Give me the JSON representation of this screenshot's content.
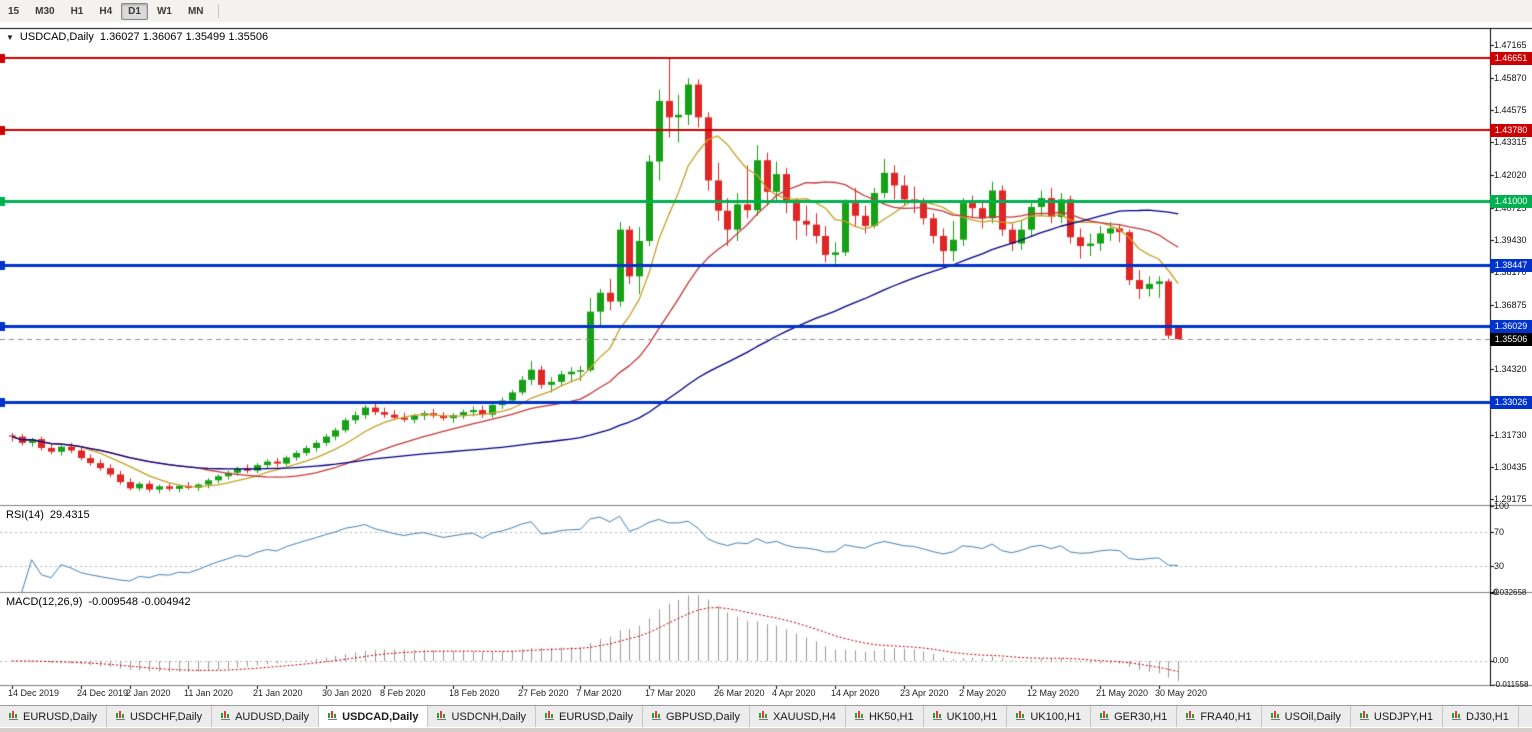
{
  "toolbar": {
    "timeframes": [
      {
        "label": "15",
        "active": false
      },
      {
        "label": "M30",
        "active": false
      },
      {
        "label": "H1",
        "active": false
      },
      {
        "label": "H4",
        "active": false
      },
      {
        "label": "D1",
        "active": true
      },
      {
        "label": "W1",
        "active": false
      },
      {
        "label": "MN",
        "active": false
      }
    ]
  },
  "chart_data": {
    "type": "candlestick",
    "title": "USDCAD,Daily",
    "ohlc_text": "1.36027 1.36067 1.35499 1.35506",
    "current_bar": {
      "open": 1.36027,
      "high": 1.36067,
      "low": 1.35499,
      "close": 1.35506
    },
    "colors": {
      "up": "#16a016",
      "down": "#e02525",
      "background": "#ffffff",
      "current_price_line": "#909090"
    },
    "price_axis": {
      "min": 1.2894,
      "max": 1.478,
      "ticks": [
        "1.47165",
        "1.45870",
        "1.44575",
        "1.43315",
        "1.42020",
        "1.40725",
        "1.39430",
        "1.38170",
        "1.36875",
        "1.34320",
        "1.31730",
        "1.30435",
        "1.29175"
      ]
    },
    "hlines": [
      {
        "price": 1.46651,
        "label": "1.46651",
        "color": "#cc0000",
        "width": 2
      },
      {
        "price": 1.4378,
        "label": "1.43780",
        "color": "#cc0000",
        "width": 2
      },
      {
        "price": 1.41,
        "label": "1.41000",
        "color": "#00b050",
        "width": 3
      },
      {
        "price": 1.38447,
        "label": "1.38447",
        "color": "#0033cc",
        "width": 3
      },
      {
        "price": 1.36029,
        "label": "1.36029",
        "color": "#0033cc",
        "width": 3
      },
      {
        "price": 1.33026,
        "label": "1.33026",
        "color": "#0033cc",
        "width": 3
      }
    ],
    "current_price": {
      "price": 1.35506,
      "label": "1.35506",
      "color": "#000000"
    },
    "moving_averages": [
      {
        "period": 8,
        "color": "#C8A028"
      },
      {
        "period": 20,
        "color": "#C23B3B"
      },
      {
        "period": 55,
        "color": "#000080"
      }
    ],
    "candles": [
      [
        1.317,
        1.318,
        1.3145,
        1.3165
      ],
      [
        1.3165,
        1.3175,
        1.313,
        1.314
      ],
      [
        1.314,
        1.316,
        1.3125,
        1.3155
      ],
      [
        1.3155,
        1.3165,
        1.311,
        1.312
      ],
      [
        1.312,
        1.3135,
        1.3095,
        1.3105
      ],
      [
        1.3105,
        1.313,
        1.309,
        1.3125
      ],
      [
        1.3125,
        1.314,
        1.31,
        1.311
      ],
      [
        1.311,
        1.312,
        1.307,
        1.308
      ],
      [
        1.308,
        1.3095,
        1.305,
        1.306
      ],
      [
        1.306,
        1.3075,
        1.303,
        1.304
      ],
      [
        1.304,
        1.3055,
        1.3005,
        1.3015
      ],
      [
        1.3015,
        1.303,
        1.2975,
        1.2985
      ],
      [
        1.2985,
        1.3,
        1.2952,
        1.296
      ],
      [
        1.296,
        1.2985,
        1.295,
        1.2978
      ],
      [
        1.2978,
        1.299,
        1.2945,
        1.2955
      ],
      [
        1.2955,
        1.2975,
        1.294,
        1.2968
      ],
      [
        1.2968,
        1.298,
        1.2948,
        1.2958
      ],
      [
        1.2958,
        1.2975,
        1.2945,
        1.297
      ],
      [
        1.297,
        1.2985,
        1.2955,
        1.2962
      ],
      [
        1.2962,
        1.298,
        1.295,
        1.2975
      ],
      [
        1.2975,
        1.3,
        1.296,
        1.2992
      ],
      [
        1.2992,
        1.3015,
        1.298,
        1.3008
      ],
      [
        1.3008,
        1.303,
        1.2995,
        1.3022
      ],
      [
        1.3022,
        1.3045,
        1.301,
        1.3038
      ],
      [
        1.3038,
        1.3055,
        1.302,
        1.303
      ],
      [
        1.303,
        1.306,
        1.302,
        1.3052
      ],
      [
        1.3052,
        1.3075,
        1.304,
        1.3066
      ],
      [
        1.3066,
        1.308,
        1.3045,
        1.3058
      ],
      [
        1.3058,
        1.309,
        1.305,
        1.3082
      ],
      [
        1.3082,
        1.311,
        1.307,
        1.31
      ],
      [
        1.31,
        1.313,
        1.3088,
        1.312
      ],
      [
        1.312,
        1.315,
        1.3105,
        1.314
      ],
      [
        1.314,
        1.3175,
        1.3128,
        1.3165
      ],
      [
        1.3165,
        1.32,
        1.315,
        1.319
      ],
      [
        1.319,
        1.324,
        1.318,
        1.323
      ],
      [
        1.323,
        1.3265,
        1.3215,
        1.325
      ],
      [
        1.325,
        1.329,
        1.3235,
        1.328
      ],
      [
        1.328,
        1.3295,
        1.325,
        1.3262
      ],
      [
        1.3262,
        1.328,
        1.324,
        1.3252
      ],
      [
        1.3252,
        1.327,
        1.323,
        1.324
      ],
      [
        1.324,
        1.326,
        1.3222,
        1.3232
      ],
      [
        1.3232,
        1.3255,
        1.3218,
        1.3248
      ],
      [
        1.3248,
        1.3268,
        1.323,
        1.3258
      ],
      [
        1.3258,
        1.3275,
        1.3238,
        1.3248
      ],
      [
        1.3248,
        1.3262,
        1.3228,
        1.3238
      ],
      [
        1.3238,
        1.3258,
        1.322,
        1.325
      ],
      [
        1.325,
        1.3272,
        1.3235,
        1.3262
      ],
      [
        1.3262,
        1.3285,
        1.3245,
        1.327
      ],
      [
        1.327,
        1.3288,
        1.324,
        1.3252
      ],
      [
        1.3252,
        1.33,
        1.324,
        1.329
      ],
      [
        1.329,
        1.332,
        1.3275,
        1.3308
      ],
      [
        1.3308,
        1.335,
        1.3295,
        1.334
      ],
      [
        1.334,
        1.3405,
        1.333,
        1.339
      ],
      [
        1.339,
        1.3465,
        1.337,
        1.343
      ],
      [
        1.343,
        1.3445,
        1.3355,
        1.337
      ],
      [
        1.337,
        1.34,
        1.334,
        1.3382
      ],
      [
        1.3382,
        1.3425,
        1.3365,
        1.3412
      ],
      [
        1.3412,
        1.344,
        1.338,
        1.3422
      ],
      [
        1.3422,
        1.3445,
        1.3385,
        1.3428
      ],
      [
        1.3428,
        1.3715,
        1.342,
        1.366
      ],
      [
        1.366,
        1.375,
        1.36,
        1.3735
      ],
      [
        1.3735,
        1.379,
        1.3665,
        1.37
      ],
      [
        1.37,
        1.4015,
        1.368,
        1.3985
      ],
      [
        1.3985,
        1.4,
        1.377,
        1.38
      ],
      [
        1.38,
        1.3995,
        1.373,
        1.394
      ],
      [
        1.394,
        1.428,
        1.392,
        1.4255
      ],
      [
        1.4255,
        1.454,
        1.418,
        1.4495
      ],
      [
        1.4495,
        1.4668,
        1.435,
        1.443
      ],
      [
        1.443,
        1.452,
        1.433,
        1.444
      ],
      [
        1.444,
        1.4585,
        1.44,
        1.456
      ],
      [
        1.456,
        1.458,
        1.439,
        1.443
      ],
      [
        1.443,
        1.445,
        1.414,
        1.418
      ],
      [
        1.418,
        1.425,
        1.402,
        1.406
      ],
      [
        1.406,
        1.411,
        1.392,
        1.3985
      ],
      [
        1.3985,
        1.413,
        1.394,
        1.4085
      ],
      [
        1.4085,
        1.424,
        1.403,
        1.4062
      ],
      [
        1.4062,
        1.432,
        1.404,
        1.426
      ],
      [
        1.426,
        1.429,
        1.408,
        1.4135
      ],
      [
        1.4135,
        1.4255,
        1.41,
        1.4205
      ],
      [
        1.4205,
        1.423,
        1.405,
        1.409
      ],
      [
        1.409,
        1.411,
        1.3945,
        1.402
      ],
      [
        1.402,
        1.408,
        1.396,
        1.4005
      ],
      [
        1.4005,
        1.405,
        1.393,
        1.396
      ],
      [
        1.396,
        1.4,
        1.3855,
        1.3885
      ],
      [
        1.3885,
        1.3935,
        1.385,
        1.3895
      ],
      [
        1.3895,
        1.4105,
        1.388,
        1.409
      ],
      [
        1.409,
        1.415,
        1.4,
        1.404
      ],
      [
        1.404,
        1.408,
        1.397,
        1.4
      ],
      [
        1.4,
        1.415,
        1.399,
        1.413
      ],
      [
        1.413,
        1.4265,
        1.411,
        1.421
      ],
      [
        1.421,
        1.424,
        1.4105,
        1.416
      ],
      [
        1.416,
        1.42,
        1.408,
        1.4105
      ],
      [
        1.4105,
        1.4155,
        1.405,
        1.409
      ],
      [
        1.409,
        1.411,
        1.4005,
        1.403
      ],
      [
        1.403,
        1.405,
        1.393,
        1.396
      ],
      [
        1.396,
        1.399,
        1.385,
        1.39
      ],
      [
        1.39,
        1.402,
        1.386,
        1.3945
      ],
      [
        1.3945,
        1.411,
        1.392,
        1.409
      ],
      [
        1.409,
        1.412,
        1.403,
        1.407
      ],
      [
        1.407,
        1.4095,
        1.399,
        1.403
      ],
      [
        1.403,
        1.4175,
        1.401,
        1.414
      ],
      [
        1.414,
        1.416,
        1.396,
        1.3985
      ],
      [
        1.3985,
        1.401,
        1.39,
        1.393
      ],
      [
        1.393,
        1.402,
        1.3905,
        1.3985
      ],
      [
        1.3985,
        1.409,
        1.396,
        1.4075
      ],
      [
        1.4075,
        1.414,
        1.404,
        1.411
      ],
      [
        1.411,
        1.415,
        1.401,
        1.4035
      ],
      [
        1.4035,
        1.413,
        1.401,
        1.4105
      ],
      [
        1.4105,
        1.412,
        1.393,
        1.3955
      ],
      [
        1.3955,
        1.399,
        1.387,
        1.392
      ],
      [
        1.392,
        1.397,
        1.388,
        1.393
      ],
      [
        1.393,
        1.4,
        1.39,
        1.397
      ],
      [
        1.397,
        1.4015,
        1.394,
        1.399
      ],
      [
        1.399,
        1.4005,
        1.3935,
        1.3975
      ],
      [
        1.3975,
        1.3985,
        1.3765,
        1.3785
      ],
      [
        1.3785,
        1.3825,
        1.371,
        1.375
      ],
      [
        1.375,
        1.38,
        1.372,
        1.377
      ],
      [
        1.377,
        1.38,
        1.3715,
        1.378
      ],
      [
        1.378,
        1.379,
        1.355,
        1.3565
      ],
      [
        1.3603,
        1.3607,
        1.355,
        1.3551
      ]
    ],
    "time_labels": [
      [
        0,
        "14 Dec 2019"
      ],
      [
        7,
        "24 Dec 2019"
      ],
      [
        12,
        "2 Jan 2020"
      ],
      [
        18,
        "11 Jan 2020"
      ],
      [
        25,
        "21 Jan 2020"
      ],
      [
        32,
        "30 Jan 2020"
      ],
      [
        38,
        "8 Feb 2020"
      ],
      [
        45,
        "18 Feb 2020"
      ],
      [
        52,
        "27 Feb 2020"
      ],
      [
        58,
        "7 Mar 2020"
      ],
      [
        65,
        "17 Mar 2020"
      ],
      [
        72,
        "26 Mar 2020"
      ],
      [
        78,
        "4 Apr 2020"
      ],
      [
        84,
        "14 Apr 2020"
      ],
      [
        91,
        "23 Apr 2020"
      ],
      [
        97,
        "2 May 2020"
      ],
      [
        104,
        "12 May 2020"
      ],
      [
        111,
        "21 May 2020"
      ],
      [
        117,
        "30 May 2020"
      ]
    ],
    "rsi": {
      "name": "RSI(14)",
      "value": "29.4315",
      "period": 14,
      "color": "#4682B4",
      "levels": [
        {
          "value": 100,
          "label": "100",
          "line": false
        },
        {
          "value": 70,
          "label": "70",
          "line": true
        },
        {
          "value": 30,
          "label": "30",
          "line": true
        },
        {
          "value": 0,
          "label": "0",
          "line": false
        }
      ]
    },
    "macd": {
      "name": "MACD(12,26,9)",
      "value": "-0.009548 -0.004942",
      "fast": 12,
      "slow": 26,
      "signal_period": 9,
      "hist_color": "#9a9a9a",
      "signal_color": "#c00000",
      "scale_max": 0.032658,
      "scale_min": -0.011558,
      "axis": [
        {
          "value": 0.032658,
          "label": "0.032658",
          "line": false
        },
        {
          "value": 0,
          "label": "0.00",
          "line": true
        },
        {
          "value": -0.011558,
          "label": "-0.011558",
          "line": false
        }
      ]
    }
  },
  "tabs": [
    {
      "label": "EURUSD,Daily",
      "active": false
    },
    {
      "label": "USDCHF,Daily",
      "active": false
    },
    {
      "label": "AUDUSD,Daily",
      "active": false
    },
    {
      "label": "USDCAD,Daily",
      "active": true
    },
    {
      "label": "USDCNH,Daily",
      "active": false
    },
    {
      "label": "EURUSD,Daily",
      "active": false
    },
    {
      "label": "GBPUSD,Daily",
      "active": false
    },
    {
      "label": "XAUUSD,H4",
      "active": false
    },
    {
      "label": "HK50,H1",
      "active": false
    },
    {
      "label": "UK100,H1",
      "active": false
    },
    {
      "label": "UK100,H1",
      "active": false
    },
    {
      "label": "GER30,H1",
      "active": false
    },
    {
      "label": "FRA40,H1",
      "active": false
    },
    {
      "label": "USOil,Daily",
      "active": false
    },
    {
      "label": "USDJPY,H1",
      "active": false
    },
    {
      "label": "DJ30,H1",
      "active": false
    }
  ]
}
